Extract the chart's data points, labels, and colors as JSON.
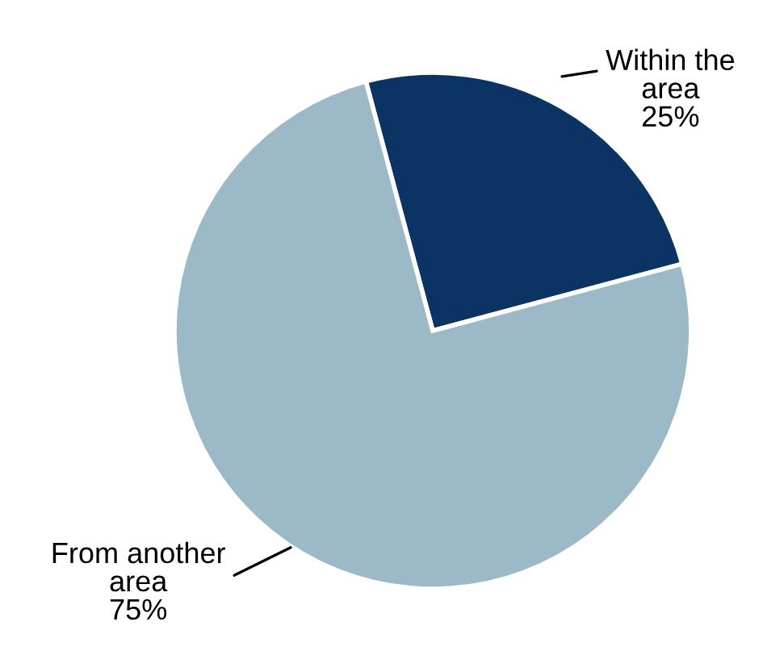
{
  "chart_data": {
    "type": "pie",
    "categories": [
      "Within the\narea",
      "From another\narea"
    ],
    "values": [
      25,
      75
    ],
    "colors": [
      "#0b3364",
      "#9bb9c7"
    ],
    "value_labels": [
      "25%",
      "75%"
    ]
  }
}
